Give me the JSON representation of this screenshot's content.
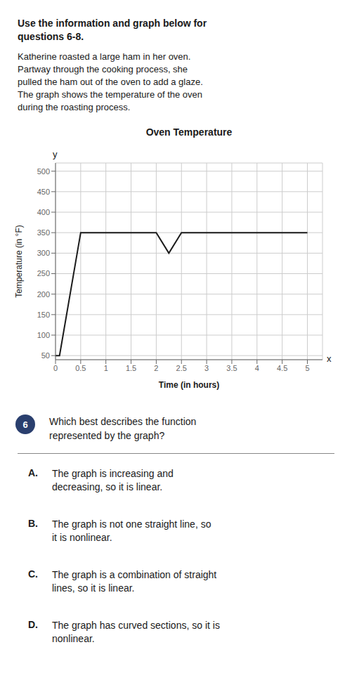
{
  "chart_data": {
    "type": "line",
    "title": "Oven Temperature",
    "xlabel": "Time (in hours)",
    "ylabel": "Temperature (in °F)",
    "x": [
      0,
      0.08,
      0.5,
      2.0,
      2.25,
      2.5,
      3.0,
      5.0
    ],
    "values": [
      50,
      50,
      350,
      350,
      300,
      350,
      350,
      350
    ],
    "color": "#1a1a1a",
    "xlim": [
      0,
      5.3
    ],
    "ylim": [
      40,
      520
    ],
    "xticks": [
      0,
      0.5,
      1,
      1.5,
      2,
      2.5,
      3,
      3.5,
      4,
      4.5,
      5
    ],
    "yticks": [
      50,
      100,
      150,
      200,
      250,
      300,
      350,
      400,
      450,
      500
    ],
    "grid": true,
    "annotations": [
      "Use the information and graph below for\nquestions 6-8.",
      "Katherine roasted a large ham in her oven.\nPartway through the cooking process, she\npulled the ham out of the oven to add a glaze.\nThe graph shows the temperature of the oven\nduring the roasting process.",
      "y",
      "x",
      "6",
      "Which best describes the function\nrepresented by the graph?",
      "A.",
      "The graph is increasing and\ndecreasing, so it is linear.",
      "B.",
      "The graph is not one straight line, so\nit is nonlinear.",
      "C.",
      "The graph is a combination of straight\nlines, so it is linear.",
      "D.",
      "The graph has curved sections, so it is\nnonlinear."
    ]
  }
}
